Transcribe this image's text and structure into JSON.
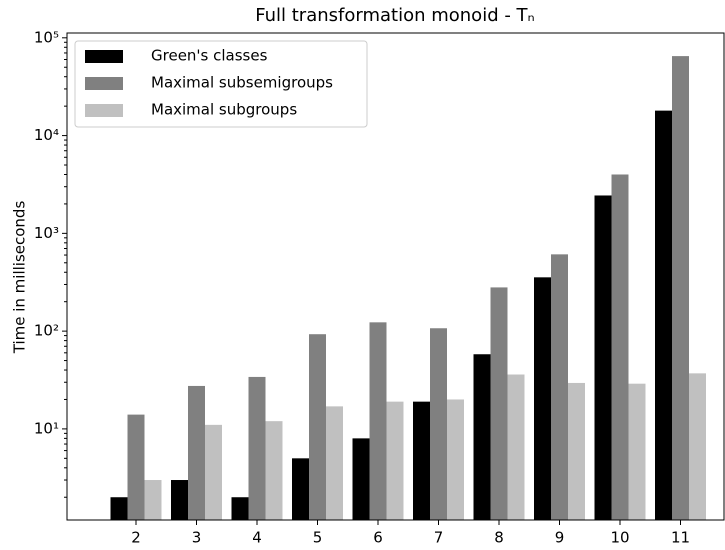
{
  "chart_data": {
    "type": "bar",
    "title": "Full transformation monoid - Tₙ",
    "y_label": "Time in milliseconds",
    "categories": [
      "2",
      "3",
      "4",
      "5",
      "6",
      "7",
      "8",
      "9",
      "10",
      "11"
    ],
    "series": [
      {
        "name": "Green's classes",
        "color": "#000000",
        "values": [
          2,
          3,
          2,
          5,
          8,
          19,
          58,
          355,
          2440,
          18000
        ]
      },
      {
        "name": "Maximal subsemigroups",
        "color": "#808080",
        "values": [
          14,
          27.5,
          34,
          93,
          123,
          107,
          280,
          610,
          4000,
          65000
        ]
      },
      {
        "name": "Maximal subgroups",
        "color": "#c0c0c0",
        "values": [
          3,
          11,
          12,
          17,
          19,
          20,
          36,
          29.5,
          29,
          37
        ]
      }
    ],
    "log_scale": true,
    "ylim": [
      1.17,
      112000
    ],
    "yticks": [
      {
        "value": 10,
        "label": "10¹"
      },
      {
        "value": 100,
        "label": "10²"
      },
      {
        "value": 1000,
        "label": "10³"
      },
      {
        "value": 10000,
        "label": "10⁴"
      },
      {
        "value": 100000,
        "label": "10⁵"
      }
    ],
    "legend": "upper left"
  }
}
